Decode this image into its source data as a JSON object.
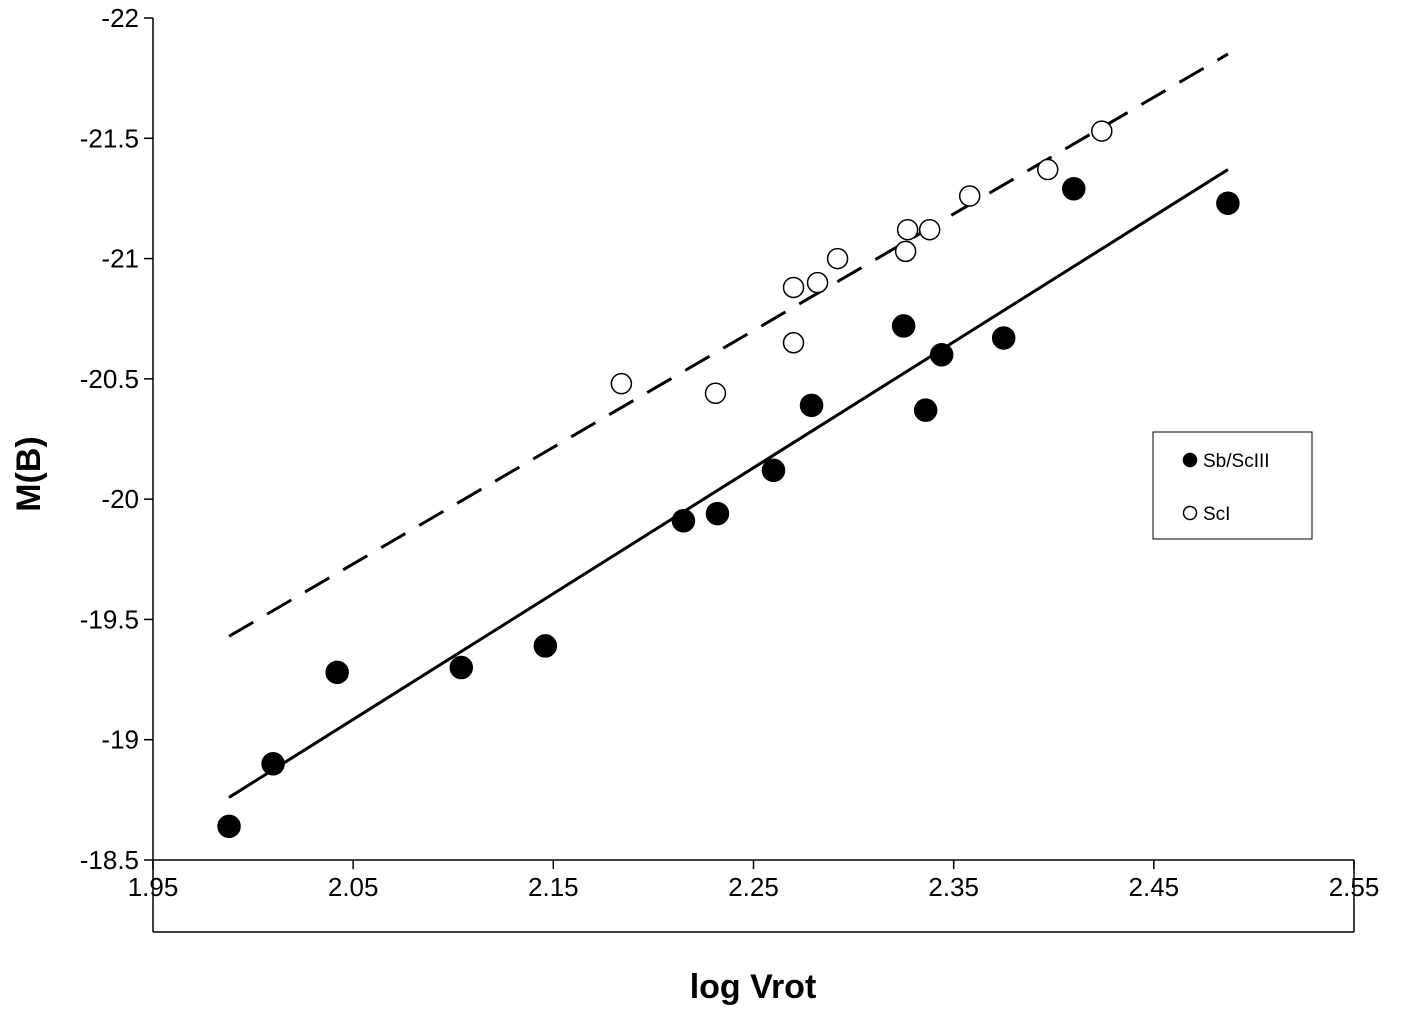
{
  "chart_data": {
    "type": "scatter",
    "title": "",
    "xlabel": "log Vrot",
    "ylabel": "M(B)",
    "xlim": [
      1.95,
      2.55
    ],
    "ylim": [
      -18.5,
      -22
    ],
    "y_axis_reversed": true,
    "x_ticks": [
      "1.95",
      "2.05",
      "2.15",
      "2.25",
      "2.35",
      "2.45",
      "2.55"
    ],
    "y_ticks": [
      "-22",
      "-21.5",
      "-21",
      "-20.5",
      "-20",
      "-19.5",
      "-19",
      "-18.5"
    ],
    "grid": false,
    "legend_position": "right",
    "series": [
      {
        "name": "Sb/ScIII",
        "marker": "filled-circle",
        "color": "#000000",
        "points": [
          [
            1.988,
            -18.64
          ],
          [
            2.01,
            -18.9
          ],
          [
            2.042,
            -19.28
          ],
          [
            2.104,
            -19.3
          ],
          [
            2.146,
            -19.39
          ],
          [
            2.215,
            -19.91
          ],
          [
            2.232,
            -19.94
          ],
          [
            2.26,
            -20.12
          ],
          [
            2.279,
            -20.39
          ],
          [
            2.325,
            -20.72
          ],
          [
            2.336,
            -20.37
          ],
          [
            2.344,
            -20.6
          ],
          [
            2.375,
            -20.67
          ],
          [
            2.41,
            -21.29
          ],
          [
            2.487,
            -21.23
          ]
        ],
        "fit_line": {
          "style": "solid",
          "x": [
            1.988,
            2.487
          ],
          "y": [
            -18.76,
            -21.37
          ]
        }
      },
      {
        "name": "ScI",
        "marker": "open-circle",
        "color": "#000000",
        "points": [
          [
            2.184,
            -20.48
          ],
          [
            2.231,
            -20.44
          ],
          [
            2.27,
            -20.65
          ],
          [
            2.27,
            -20.88
          ],
          [
            2.282,
            -20.9
          ],
          [
            2.292,
            -21.0
          ],
          [
            2.326,
            -21.03
          ],
          [
            2.327,
            -21.12
          ],
          [
            2.338,
            -21.12
          ],
          [
            2.358,
            -21.26
          ],
          [
            2.397,
            -21.37
          ],
          [
            2.424,
            -21.53
          ]
        ],
        "fit_line": {
          "style": "dashed",
          "x": [
            1.988,
            2.487
          ],
          "y": [
            -19.43,
            -21.85
          ]
        }
      }
    ]
  }
}
